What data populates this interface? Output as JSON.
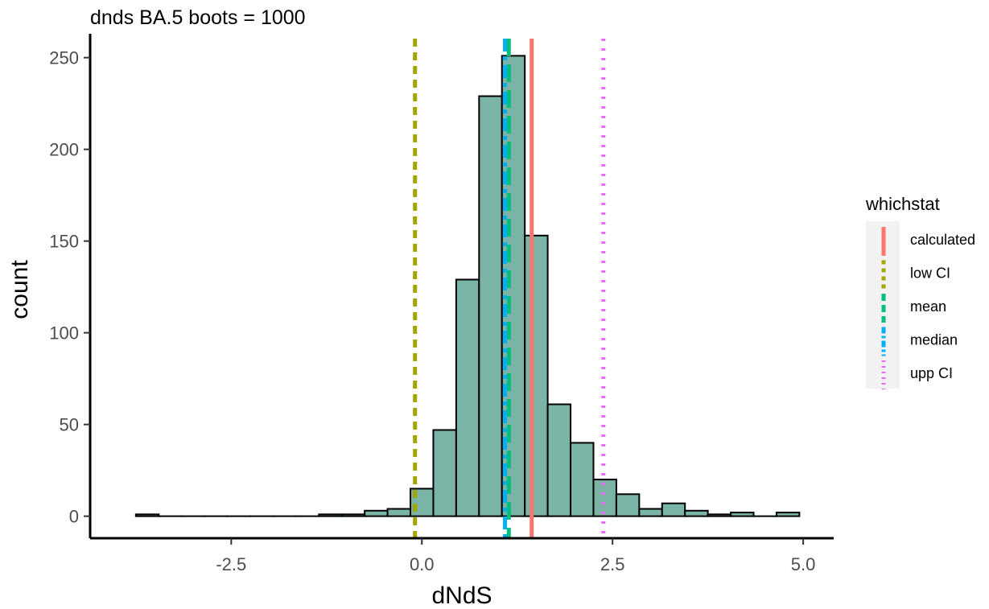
{
  "chart_data": {
    "type": "bar",
    "title": "dnds BA.5 boots = 1000",
    "xlabel": "dNdS",
    "ylabel": "count",
    "xlim": [
      -4.35,
      5.4
    ],
    "ylim": [
      -12,
      263
    ],
    "x_ticks": [
      -2.5,
      0.0,
      2.5,
      5.0
    ],
    "x_tick_labels": [
      "-2.5",
      "0.0",
      "2.5",
      "5.0"
    ],
    "y_ticks": [
      0,
      50,
      100,
      150,
      200,
      250
    ],
    "y_tick_labels": [
      "0",
      "50",
      "100",
      "150",
      "200",
      "250"
    ],
    "bin_width": 0.3,
    "bin_centers": [
      -3.6,
      -3.3,
      -3.0,
      -2.7,
      -2.4,
      -2.1,
      -1.8,
      -1.5,
      -1.2,
      -0.9,
      -0.6,
      -0.3,
      0.0,
      0.3,
      0.6,
      0.9,
      1.2,
      1.5,
      1.8,
      2.1,
      2.4,
      2.7,
      3.0,
      3.3,
      3.6,
      3.9,
      4.2,
      4.5,
      4.8
    ],
    "counts": [
      1,
      0,
      0,
      0,
      0,
      0,
      0,
      0,
      1,
      1,
      3,
      4,
      15,
      47,
      129,
      229,
      251,
      153,
      61,
      40,
      20,
      12,
      4,
      7,
      3,
      1,
      2,
      0,
      2
    ],
    "bar_fill": "#79b4a7",
    "bar_stroke": "#000000",
    "legend_title": "whichstat",
    "legend_position": "right",
    "grid": false,
    "stat_lines": [
      {
        "name": "calculated",
        "value": 1.44,
        "color": "#F8766D",
        "style": "solid"
      },
      {
        "name": "low CI",
        "value": -0.09,
        "color": "#A3A500",
        "style": "dashed"
      },
      {
        "name": "mean",
        "value": 1.14,
        "color": "#00BF7D",
        "style": "longdash"
      },
      {
        "name": "median",
        "value": 1.09,
        "color": "#00B0F6",
        "style": "twodash"
      },
      {
        "name": "upp CI",
        "value": 2.38,
        "color": "#E76BF3",
        "style": "dotted"
      }
    ]
  }
}
